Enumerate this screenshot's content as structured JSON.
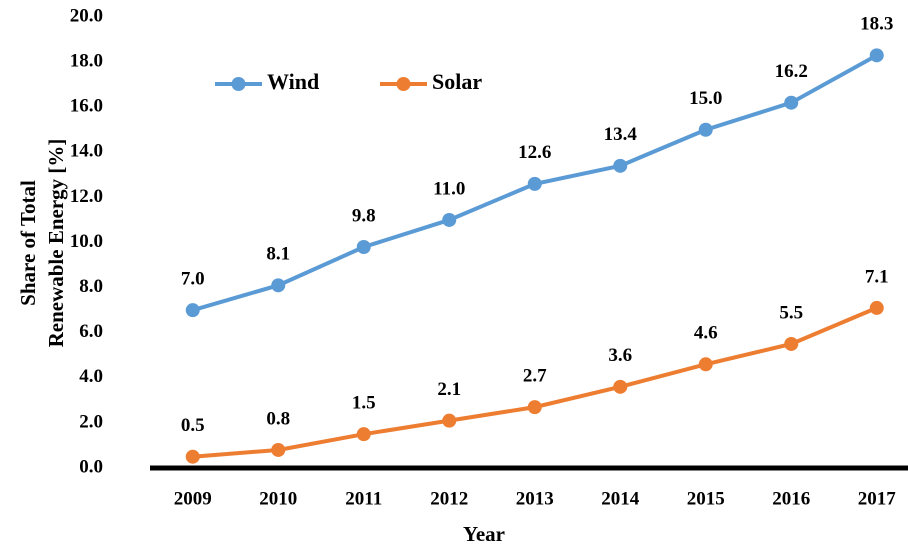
{
  "chart_data": {
    "type": "line",
    "x_label": "Year",
    "y_label": [
      "Share of Total",
      "Renewable Energy [%]"
    ],
    "categories": [
      "2009",
      "2010",
      "2011",
      "2012",
      "2013",
      "2014",
      "2015",
      "2016",
      "2017"
    ],
    "series": [
      {
        "name": "Wind",
        "color": "#5b9bd5",
        "values": [
          7.0,
          8.1,
          9.8,
          11.0,
          12.6,
          13.4,
          15.0,
          16.2,
          18.3
        ],
        "value_labels": [
          "7.0",
          "8.1",
          "9.8",
          "11.0",
          "12.6",
          "13.4",
          "15.0",
          "16.2",
          "18.3"
        ]
      },
      {
        "name": "Solar",
        "color": "#ed7d31",
        "values": [
          0.5,
          0.8,
          1.5,
          2.1,
          2.7,
          3.6,
          4.6,
          5.5,
          7.1
        ],
        "value_labels": [
          "0.5",
          "0.8",
          "1.5",
          "2.1",
          "2.7",
          "3.6",
          "4.6",
          "5.5",
          "7.1"
        ]
      }
    ],
    "ylim": [
      0,
      20
    ],
    "yticks": [
      {
        "value": 0,
        "label": "0.0"
      },
      {
        "value": 2,
        "label": "2.0"
      },
      {
        "value": 4,
        "label": "4.0"
      },
      {
        "value": 6,
        "label": "6.0"
      },
      {
        "value": 8,
        "label": "8.0"
      },
      {
        "value": 10,
        "label": "10.0"
      },
      {
        "value": 12,
        "label": "12.0"
      },
      {
        "value": 14,
        "label": "14.0"
      },
      {
        "value": 16,
        "label": "16.0"
      },
      {
        "value": 18,
        "label": "18.0"
      },
      {
        "value": 20,
        "label": "20.0"
      }
    ],
    "grid": false,
    "legend": "top-left"
  }
}
